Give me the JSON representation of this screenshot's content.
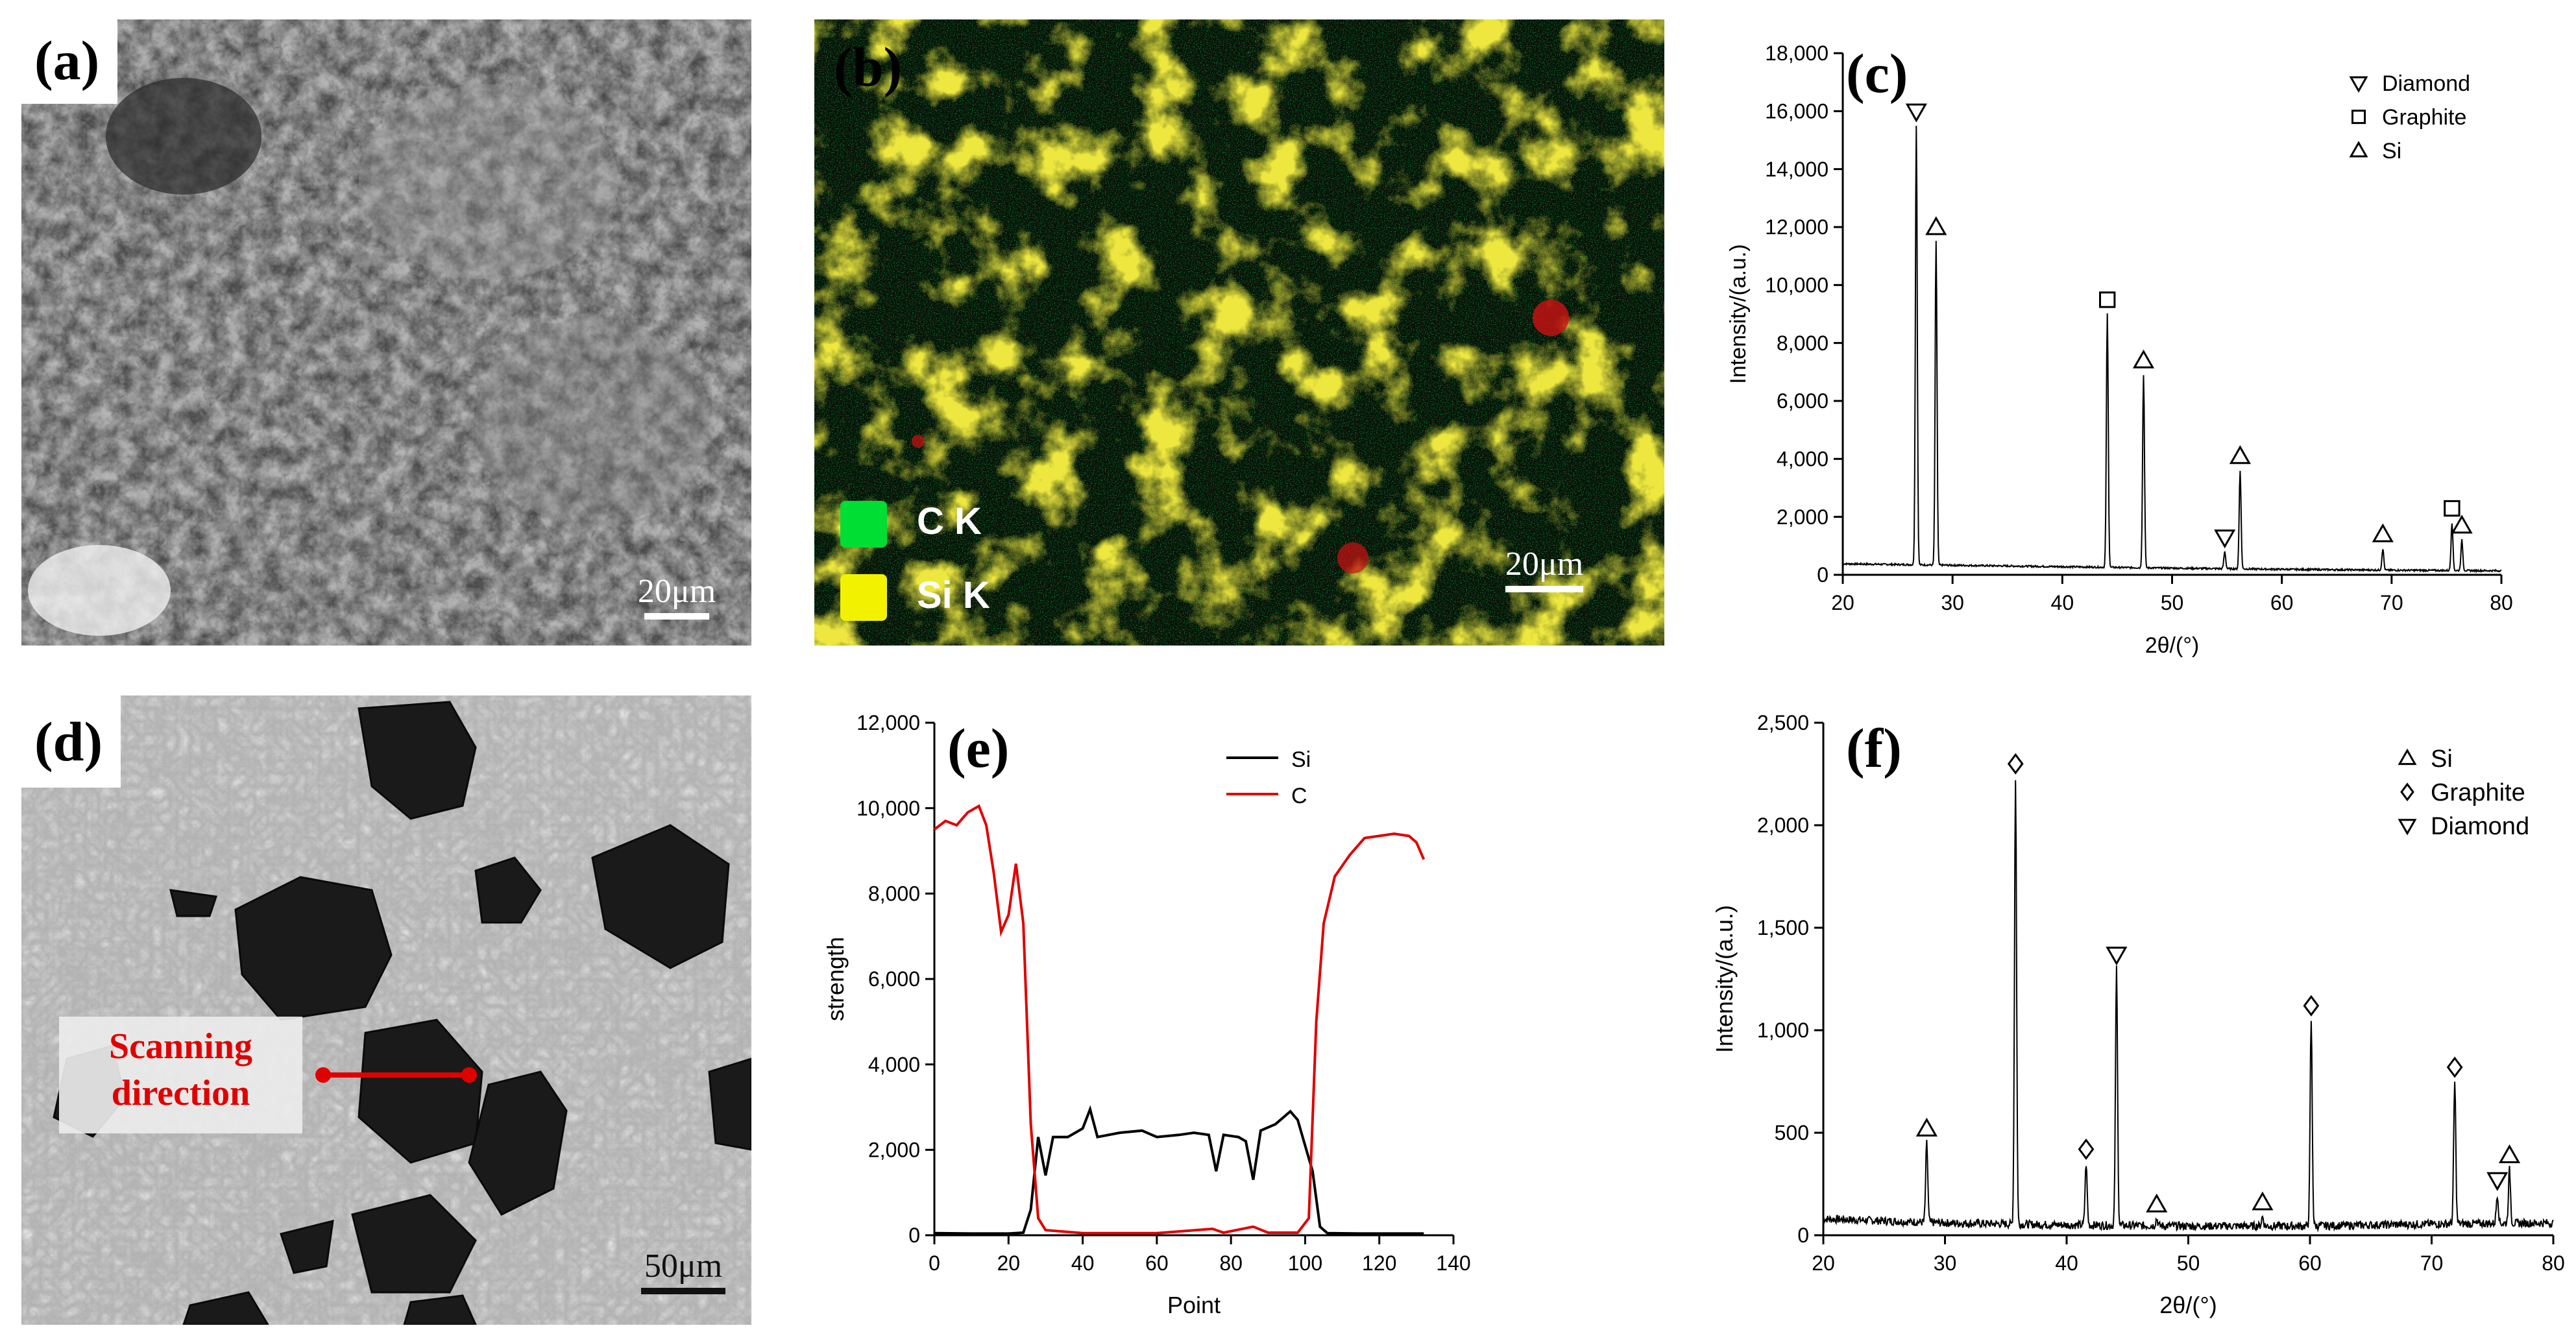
{
  "panels": {
    "a": {
      "label": "(a)",
      "scale": "20μm"
    },
    "b": {
      "label": "(b)",
      "scale": "20μm",
      "legend": [
        {
          "name": "C K",
          "color": "#00dd33"
        },
        {
          "name": "Si K",
          "color": "#f2f200"
        }
      ]
    },
    "c": {
      "label": "(c)"
    },
    "d": {
      "label": "(d)",
      "scale": "50μm",
      "scan_text_1": "Scanning",
      "scan_text_2": "direction"
    },
    "e": {
      "label": "(e)"
    },
    "f": {
      "label": "(f)"
    }
  },
  "colors": {
    "si_line": "#000000",
    "c_line": "#e00000",
    "scan": "#e00000"
  },
  "chart_data": [
    {
      "id": "c",
      "type": "line",
      "xlabel": "2θ/(°)",
      "ylabel": "Intensity/(a.u.)",
      "xlim": [
        20,
        80
      ],
      "ylim": [
        0,
        18000
      ],
      "xticks": [
        20,
        30,
        40,
        50,
        60,
        70,
        80
      ],
      "yticks": [
        0,
        2000,
        4000,
        6000,
        8000,
        10000,
        12000,
        14000,
        16000,
        18000
      ],
      "ytick_labels": [
        "0",
        "2,000",
        "4,000",
        "6,000",
        "8,000",
        "10,000",
        "12,000",
        "14,000",
        "16,000",
        "18,000"
      ],
      "legend": [
        {
          "marker": "tri-down",
          "name": "Diamond"
        },
        {
          "marker": "square",
          "name": "Graphite"
        },
        {
          "marker": "tri-up",
          "name": "Si"
        }
      ],
      "peaks": [
        {
          "x": 26.7,
          "y": 15500,
          "marker": "tri-down"
        },
        {
          "x": 28.5,
          "y": 11500,
          "marker": "tri-up"
        },
        {
          "x": 44.1,
          "y": 9000,
          "marker": "square"
        },
        {
          "x": 47.4,
          "y": 6900,
          "marker": "tri-up"
        },
        {
          "x": 54.8,
          "y": 800,
          "marker": "tri-down"
        },
        {
          "x": 56.2,
          "y": 3600,
          "marker": "tri-up"
        },
        {
          "x": 69.2,
          "y": 900,
          "marker": "tri-up"
        },
        {
          "x": 75.5,
          "y": 1800,
          "marker": "square"
        },
        {
          "x": 76.4,
          "y": 1200,
          "marker": "tri-up"
        }
      ],
      "baseline": [
        [
          20,
          380
        ],
        [
          30,
          330
        ],
        [
          40,
          280
        ],
        [
          50,
          230
        ],
        [
          60,
          190
        ],
        [
          70,
          160
        ],
        [
          80,
          140
        ]
      ]
    },
    {
      "id": "e",
      "type": "line",
      "xlabel": "Point",
      "ylabel": "strength",
      "xlim": [
        0,
        140
      ],
      "ylim": [
        0,
        12000
      ],
      "xticks": [
        0,
        20,
        40,
        60,
        80,
        100,
        120,
        140
      ],
      "yticks": [
        0,
        2000,
        4000,
        6000,
        8000,
        10000,
        12000
      ],
      "ytick_labels": [
        "0",
        "2,000",
        "4,000",
        "6,000",
        "8,000",
        "10,000",
        "12,000"
      ],
      "series": [
        {
          "name": "Si",
          "color": "#000000",
          "points": [
            [
              0,
              50
            ],
            [
              10,
              40
            ],
            [
              20,
              40
            ],
            [
              24,
              60
            ],
            [
              26,
              600
            ],
            [
              28,
              2300
            ],
            [
              30,
              1400
            ],
            [
              32,
              2300
            ],
            [
              36,
              2300
            ],
            [
              40,
              2500
            ],
            [
              42,
              2950
            ],
            [
              44,
              2300
            ],
            [
              50,
              2400
            ],
            [
              56,
              2450
            ],
            [
              60,
              2300
            ],
            [
              66,
              2350
            ],
            [
              70,
              2400
            ],
            [
              74,
              2350
            ],
            [
              76,
              1500
            ],
            [
              78,
              2350
            ],
            [
              82,
              2300
            ],
            [
              84,
              2200
            ],
            [
              86,
              1300
            ],
            [
              88,
              2450
            ],
            [
              92,
              2600
            ],
            [
              96,
              2900
            ],
            [
              98,
              2700
            ],
            [
              100,
              2100
            ],
            [
              102,
              1500
            ],
            [
              104,
              200
            ],
            [
              106,
              50
            ],
            [
              115,
              40
            ],
            [
              132,
              40
            ]
          ]
        },
        {
          "name": "C",
          "color": "#e00000",
          "points": [
            [
              0,
              9500
            ],
            [
              3,
              9700
            ],
            [
              6,
              9600
            ],
            [
              9,
              9900
            ],
            [
              12,
              10050
            ],
            [
              14,
              9600
            ],
            [
              16,
              8500
            ],
            [
              18,
              7100
            ],
            [
              20,
              7500
            ],
            [
              22,
              8700
            ],
            [
              24,
              7300
            ],
            [
              26,
              2600
            ],
            [
              28,
              400
            ],
            [
              30,
              120
            ],
            [
              40,
              50
            ],
            [
              60,
              50
            ],
            [
              75,
              150
            ],
            [
              78,
              60
            ],
            [
              86,
              200
            ],
            [
              90,
              60
            ],
            [
              98,
              60
            ],
            [
              101,
              400
            ],
            [
              103,
              5000
            ],
            [
              105,
              7300
            ],
            [
              108,
              8400
            ],
            [
              112,
              8900
            ],
            [
              116,
              9300
            ],
            [
              120,
              9350
            ],
            [
              124,
              9400
            ],
            [
              128,
              9350
            ],
            [
              130,
              9200
            ],
            [
              132,
              8800
            ]
          ]
        }
      ]
    },
    {
      "id": "f",
      "type": "line",
      "xlabel": "2θ/(°)",
      "ylabel": "Intensity/(a.u.)",
      "xlim": [
        20,
        80
      ],
      "ylim": [
        0,
        2500
      ],
      "xticks": [
        20,
        30,
        40,
        50,
        60,
        70,
        80
      ],
      "yticks": [
        0,
        500,
        1000,
        1500,
        2000,
        2500
      ],
      "ytick_labels": [
        "0",
        "500",
        "1,000",
        "1,500",
        "2,000",
        "2,500"
      ],
      "legend": [
        {
          "marker": "tri-up",
          "name": "Si"
        },
        {
          "marker": "diamond",
          "name": "Graphite"
        },
        {
          "marker": "tri-down",
          "name": "Diamond"
        }
      ],
      "peaks": [
        {
          "x": 28.5,
          "y": 450,
          "marker": "tri-up"
        },
        {
          "x": 35.8,
          "y": 2230,
          "marker": "diamond"
        },
        {
          "x": 41.6,
          "y": 350,
          "marker": "diamond"
        },
        {
          "x": 44.1,
          "y": 1300,
          "marker": "tri-down"
        },
        {
          "x": 47.4,
          "y": 80,
          "marker": "tri-up"
        },
        {
          "x": 56.1,
          "y": 90,
          "marker": "tri-up"
        },
        {
          "x": 60.1,
          "y": 1050,
          "marker": "diamond"
        },
        {
          "x": 71.9,
          "y": 750,
          "marker": "diamond"
        },
        {
          "x": 75.4,
          "y": 200,
          "marker": "tri-down"
        },
        {
          "x": 76.4,
          "y": 320,
          "marker": "tri-up"
        }
      ],
      "baseline": [
        [
          20,
          80
        ],
        [
          30,
          60
        ],
        [
          40,
          50
        ],
        [
          50,
          45
        ],
        [
          60,
          45
        ],
        [
          70,
          55
        ],
        [
          80,
          60
        ]
      ]
    }
  ]
}
